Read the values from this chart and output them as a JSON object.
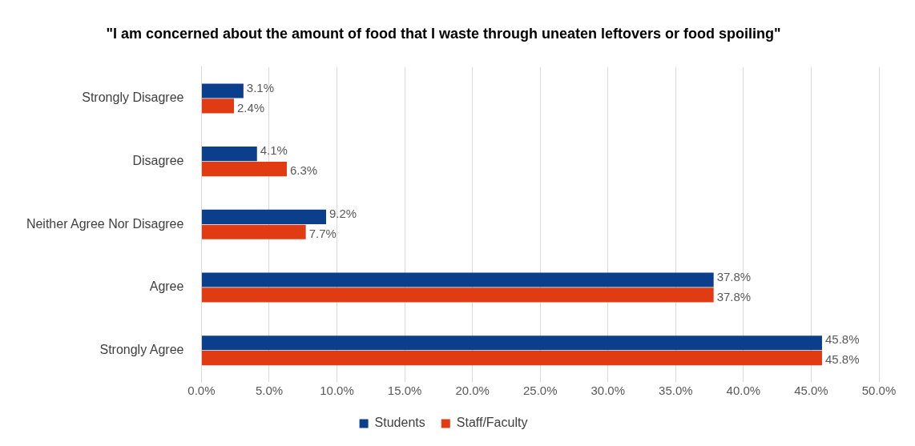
{
  "chart_data": {
    "type": "bar",
    "orientation": "horizontal",
    "title": "\"I am concerned about the amount of food that I waste through uneaten leftovers or food spoiling\"",
    "categories": [
      "Strongly Disagree",
      "Disagree",
      "Neither Agree Nor Disagree",
      "Agree",
      "Strongly Agree"
    ],
    "series": [
      {
        "name": "Students",
        "color": "#0b3f8c",
        "values": [
          3.1,
          4.1,
          9.2,
          37.8,
          45.8
        ],
        "value_labels": [
          "3.1%",
          "4.1%",
          "9.2%",
          "37.8%",
          "45.8%"
        ]
      },
      {
        "name": "Staff/Faculty",
        "color": "#e03b13",
        "values": [
          2.4,
          6.3,
          7.7,
          37.8,
          45.8
        ],
        "value_labels": [
          "2.4%",
          "6.3%",
          "7.7%",
          "37.8%",
          "45.8%"
        ]
      }
    ],
    "xlim": [
      0,
      50
    ],
    "xticks": [
      {
        "value": 0,
        "label": "0.0%"
      },
      {
        "value": 5,
        "label": "5.0%"
      },
      {
        "value": 10,
        "label": "10.0%"
      },
      {
        "value": 15,
        "label": "15.0%"
      },
      {
        "value": 20,
        "label": "20.0%"
      },
      {
        "value": 25,
        "label": "25.0%"
      },
      {
        "value": 30,
        "label": "30.0%"
      },
      {
        "value": 35,
        "label": "35.0%"
      },
      {
        "value": 40,
        "label": "40.0%"
      },
      {
        "value": 45,
        "label": "45.0%"
      },
      {
        "value": 50,
        "label": "50.0%"
      }
    ],
    "grid": "x",
    "legend": "bottom"
  }
}
